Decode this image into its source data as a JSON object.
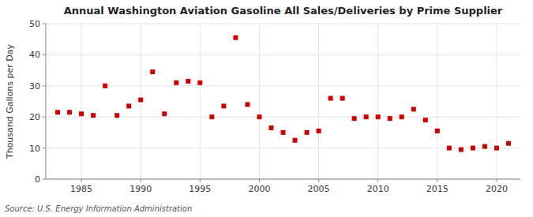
{
  "chart_data": {
    "type": "scatter",
    "title": "Annual Washington Aviation Gasoline All Sales/Deliveries by Prime Supplier",
    "ylabel": "Thousand Gallons per Day",
    "source": "Source: U.S. Energy Information Administration",
    "x": [
      1983,
      1984,
      1985,
      1986,
      1987,
      1988,
      1989,
      1990,
      1991,
      1992,
      1993,
      1994,
      1995,
      1996,
      1997,
      1998,
      1999,
      2000,
      2001,
      2002,
      2003,
      2004,
      2005,
      2006,
      2007,
      2008,
      2009,
      2010,
      2011,
      2012,
      2013,
      2014,
      2015,
      2016,
      2017,
      2018,
      2019,
      2020,
      2021
    ],
    "values": [
      21.5,
      21.5,
      21.0,
      20.5,
      30.0,
      20.5,
      23.5,
      25.5,
      34.5,
      21.0,
      31.0,
      31.5,
      31.0,
      20.0,
      23.5,
      45.5,
      24.0,
      20.0,
      16.5,
      15.0,
      12.5,
      15.0,
      15.5,
      26.0,
      26.0,
      19.5,
      20.0,
      20.0,
      19.5,
      20.0,
      22.5,
      19.0,
      15.5,
      10.0,
      9.5,
      10.0,
      10.5,
      10.0,
      11.5
    ],
    "color": "#cc0000",
    "marker": "square",
    "xlim": [
      1982,
      2022
    ],
    "ylim": [
      0,
      50
    ],
    "xticks": [
      1985,
      1990,
      1995,
      2000,
      2005,
      2010,
      2015,
      2020
    ],
    "yticks": [
      0,
      10,
      20,
      30,
      40,
      50
    ],
    "grid": true
  }
}
